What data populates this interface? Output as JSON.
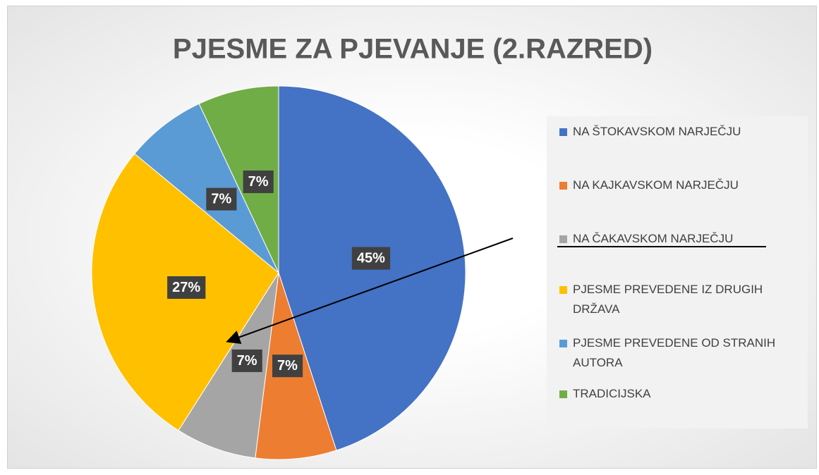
{
  "chart_data": {
    "type": "pie",
    "title": "PJESME ZA PJEVANJE (2.RAZRED)",
    "categories": [
      "NA ŠTOKAVSKOM NARJEČJU",
      "NA KAJKAVSKOM NARJEČJU",
      "NA ČAKAVSKOM NARJEČJU",
      "PJESME PREVEDENE IZ DRUGIH DRŽAVA",
      "PJESME PREVEDENE OD STRANIH AUTORA",
      "TRADICIJSKA"
    ],
    "values": [
      45,
      7,
      7,
      27,
      7,
      7
    ],
    "value_labels": [
      "45%",
      "7%",
      "7%",
      "27%",
      "7%",
      "7%"
    ],
    "colors": [
      "#4472c4",
      "#ed7d31",
      "#a5a5a5",
      "#ffc000",
      "#5b9bd5",
      "#70ad47"
    ],
    "legend": "right"
  }
}
